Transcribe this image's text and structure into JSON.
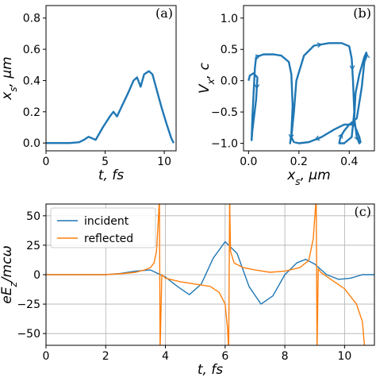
{
  "colors": {
    "blue": "#1f77b4",
    "orange": "#ff7f0e",
    "axis": "#000000"
  },
  "chart_data": [
    {
      "type": "line",
      "panel_label": "(a)",
      "xlabel": "t, fs",
      "ylabel": "x_s, μm",
      "xlim": [
        0,
        11
      ],
      "ylim": [
        -0.05,
        0.88
      ],
      "xticks": [
        0,
        5,
        10
      ],
      "yticks": [
        0.0,
        0.2,
        0.4,
        0.6,
        0.8
      ],
      "series": [
        {
          "color": "#1f77b4",
          "x": [
            0,
            1,
            2,
            2.8,
            3.2,
            3.6,
            4.2,
            4.8,
            5.4,
            5.7,
            6.0,
            6.5,
            7.0,
            7.4,
            7.7,
            8.0,
            8.3,
            8.7,
            9.0,
            9.4,
            9.8,
            10.2,
            10.6,
            10.8
          ],
          "y": [
            0,
            0,
            0,
            0.005,
            0.02,
            0.04,
            0.02,
            0.1,
            0.17,
            0.2,
            0.17,
            0.25,
            0.33,
            0.4,
            0.42,
            0.36,
            0.44,
            0.46,
            0.44,
            0.33,
            0.22,
            0.12,
            0.03,
            0.0
          ]
        }
      ]
    },
    {
      "type": "line",
      "panel_label": "(b)",
      "xlabel": "x_s, μm",
      "ylabel": "V_x, c",
      "xlim": [
        -0.02,
        0.5
      ],
      "ylim": [
        -1.12,
        1.2
      ],
      "xticks": [
        0.0,
        0.2,
        0.4
      ],
      "yticks": [
        -1.0,
        -0.5,
        0.0,
        0.5,
        1.0
      ],
      "series": [
        {
          "color": "#1f77b4",
          "x": [
            0.0,
            0.005,
            0.02,
            0.035,
            0.03,
            0.015,
            0.012,
            0.015,
            0.02,
            0.025,
            0.03,
            0.06,
            0.1,
            0.13,
            0.16,
            0.17,
            0.175,
            0.17,
            0.165,
            0.17,
            0.18,
            0.19,
            0.22,
            0.26,
            0.32,
            0.37,
            0.4,
            0.41,
            0.415,
            0.42,
            0.41,
            0.38,
            0.36,
            0.365,
            0.38,
            0.4,
            0.43,
            0.45,
            0.46,
            0.47,
            0.468,
            0.46,
            0.44,
            0.425,
            0.42,
            0.43,
            0.44,
            0.445,
            0.44,
            0.42,
            0.38,
            0.34,
            0.29,
            0.24,
            0.2,
            0.18,
            0.17
          ],
          "y": [
            0.0,
            0.08,
            0.12,
            0.05,
            -0.3,
            -0.8,
            -0.95,
            -0.6,
            -0.2,
            0.2,
            0.38,
            0.42,
            0.42,
            0.4,
            0.3,
            0.1,
            -0.4,
            -0.85,
            -1.0,
            -0.9,
            -0.5,
            0.0,
            0.4,
            0.56,
            0.6,
            0.6,
            0.55,
            0.35,
            0.0,
            -0.5,
            -0.9,
            -1.0,
            -1.0,
            -0.9,
            -0.8,
            -0.7,
            -0.6,
            -0.1,
            0.3,
            0.4,
            0.45,
            0.38,
            0.1,
            -0.2,
            -0.6,
            -0.9,
            -1.0,
            -0.98,
            -0.9,
            -0.7,
            -0.7,
            -0.78,
            -0.9,
            -0.98,
            -1.0,
            -0.98,
            -0.9
          ]
        }
      ]
    },
    {
      "type": "line",
      "panel_label": "(c)",
      "xlabel": "t, fs",
      "ylabel": "eE_z/mcω",
      "xlim": [
        0,
        11
      ],
      "ylim": [
        -60,
        60
      ],
      "xticks": [
        0,
        2,
        4,
        6,
        8,
        10
      ],
      "yticks": [
        -50,
        -25,
        0,
        25,
        50
      ],
      "legend": "top-left",
      "series": [
        {
          "name": "incident",
          "color": "#1f77b4",
          "x": [
            0,
            1,
            2,
            2.5,
            3.0,
            3.5,
            4.0,
            4.4,
            4.8,
            5.2,
            5.6,
            6.0,
            6.4,
            6.8,
            7.2,
            7.6,
            8.0,
            8.4,
            8.7,
            9.0,
            9.4,
            9.8,
            10.2,
            10.6,
            11.0
          ],
          "y": [
            0,
            0,
            0,
            1,
            3,
            4,
            -2,
            -10,
            -17,
            -8,
            14,
            28,
            18,
            -10,
            -25,
            -18,
            0,
            10,
            13,
            9,
            0,
            -4,
            -3,
            0,
            0
          ]
        },
        {
          "name": "reflected",
          "color": "#ff7f0e",
          "x": [
            0,
            1,
            2,
            2.6,
            3.0,
            3.3,
            3.5,
            3.62,
            3.7,
            3.75,
            3.8,
            3.82,
            3.88,
            4.0,
            4.5,
            5.0,
            5.5,
            5.8,
            6.0,
            6.08,
            6.12,
            6.15,
            6.18,
            6.3,
            6.6,
            7.0,
            7.5,
            8.0,
            8.5,
            8.8,
            8.95,
            9.05,
            9.08,
            9.12,
            9.2,
            9.6,
            10.0,
            10.4,
            10.6,
            10.68,
            10.72
          ],
          "y": [
            0,
            0,
            0,
            1,
            2,
            4,
            6,
            10,
            20,
            40,
            65,
            -65,
            0,
            -3,
            -6,
            -8,
            -10,
            -15,
            -25,
            -45,
            -65,
            65,
            20,
            10,
            6,
            4,
            2,
            3,
            6,
            12,
            30,
            65,
            -65,
            5,
            2,
            -5,
            -12,
            -25,
            -40,
            -65,
            -65
          ]
        }
      ]
    }
  ]
}
